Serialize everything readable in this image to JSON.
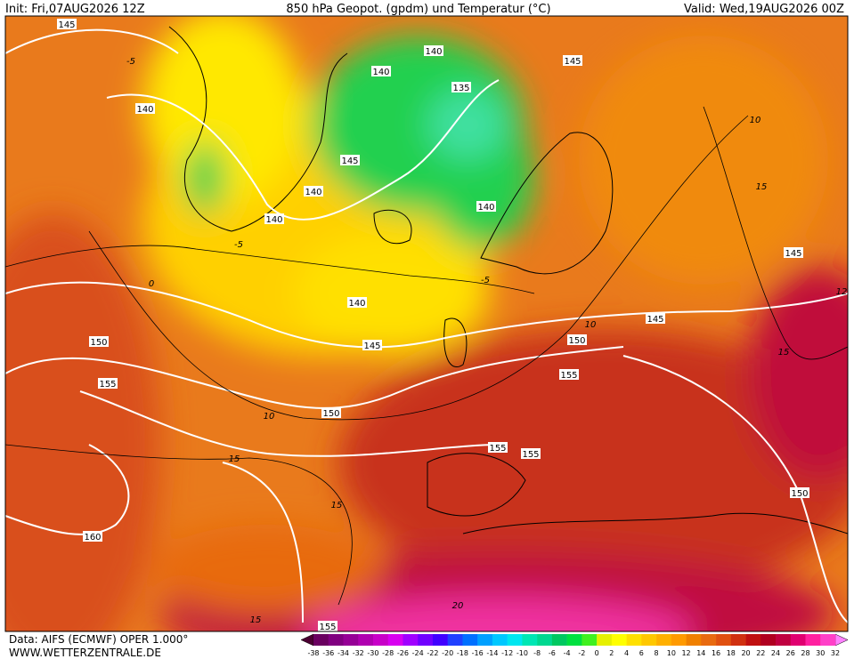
{
  "header": {
    "init": "Init: Fri,07AUG2026 12Z",
    "title": "850 hPa Geopot. (gpdm) und Temperatur (°C)",
    "valid": "Valid: Wed,19AUG2026 00Z"
  },
  "map": {
    "geopotential_labels": [
      145,
      140,
      145,
      140,
      135,
      140,
      145,
      140,
      140,
      140,
      145,
      140,
      145,
      150,
      145,
      150,
      155,
      155,
      150,
      155,
      155,
      150,
      160,
      155
    ],
    "temperature_labels": [
      -5,
      10,
      15,
      -5,
      0,
      -5,
      10,
      15,
      10,
      15,
      15,
      15,
      20,
      12
    ]
  },
  "footer": {
    "source": "Data: AIFS (ECMWF) OPER 1.000°",
    "site": "WWW.WETTERZENTRALE.DE"
  },
  "colorbar": {
    "labels": [
      -38,
      -36,
      -34,
      -32,
      -30,
      -28,
      -26,
      -24,
      -22,
      -20,
      -18,
      -16,
      -14,
      -12,
      -10,
      -8,
      -6,
      -4,
      -2,
      0,
      2,
      4,
      6,
      8,
      10,
      12,
      14,
      16,
      18,
      20,
      22,
      24,
      26,
      28,
      30,
      32
    ],
    "colors": [
      "#6a0060",
      "#800080",
      "#960096",
      "#b000b0",
      "#c800c8",
      "#d800f0",
      "#a000ff",
      "#7000ff",
      "#4000ff",
      "#2040ff",
      "#0070ff",
      "#00a0ff",
      "#00c8ff",
      "#00e6f0",
      "#00e6b4",
      "#00d890",
      "#00c860",
      "#00e040",
      "#40f020",
      "#e6f000",
      "#ffff00",
      "#ffe000",
      "#ffc800",
      "#ffb000",
      "#ff9a00",
      "#f08000",
      "#e86a10",
      "#e05010",
      "#d03010",
      "#c01010",
      "#b00020",
      "#c00040",
      "#e00070",
      "#ff20a0",
      "#ff40c8"
    ],
    "low_color": "#4b0032",
    "high_color": "#ff80ff"
  }
}
